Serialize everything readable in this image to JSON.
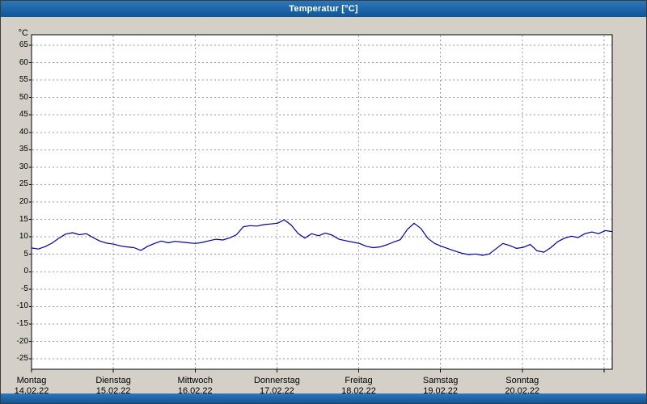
{
  "window": {
    "title": "Temperatur [°C]"
  },
  "colors": {
    "titlebar": "#1c64a5",
    "footer": "#1c64a5",
    "background": "#d4d0c8",
    "plot_background": "#ffffff",
    "grid": "#999999",
    "axis": "#000000",
    "line": "#000099",
    "title_text": "#ffffff"
  },
  "chart_data": {
    "type": "line",
    "title": "Temperatur [°C]",
    "ylabel": "°C",
    "ylim": [
      -25,
      65
    ],
    "y_tick_step": 5,
    "y_ticks": [
      65,
      60,
      55,
      50,
      45,
      40,
      35,
      30,
      25,
      20,
      15,
      10,
      5,
      0,
      -5,
      -10,
      -15,
      -20,
      -25
    ],
    "grid": "dashed",
    "legend": "none",
    "x_axis": {
      "days": [
        {
          "name": "Montag",
          "date": "14.02.22"
        },
        {
          "name": "Dienstag",
          "date": "15.02.22"
        },
        {
          "name": "Mittwoch",
          "date": "16.02.22"
        },
        {
          "name": "Donnerstag",
          "date": "17.02.22"
        },
        {
          "name": "Freitag",
          "date": "18.02.22"
        },
        {
          "name": "Samstag",
          "date": "19.02.22"
        },
        {
          "name": "Sonntag",
          "date": "20.02.22"
        }
      ]
    },
    "series": [
      {
        "name": "Temperatur",
        "unit": "°C",
        "sample_interval_hours": 2,
        "values": [
          6.8,
          6.5,
          7.2,
          8.2,
          9.6,
          10.8,
          11.2,
          10.6,
          10.9,
          9.8,
          8.8,
          8.2,
          7.9,
          7.4,
          7.1,
          6.9,
          6.1,
          7.3,
          8.1,
          8.8,
          8.3,
          8.7,
          8.5,
          8.3,
          8.1,
          8.4,
          8.9,
          9.3,
          9.1,
          9.7,
          10.6,
          12.9,
          13.2,
          13.1,
          13.5,
          13.7,
          13.9,
          14.9,
          13.4,
          11.0,
          9.6,
          10.9,
          10.3,
          11.1,
          10.5,
          9.3,
          8.9,
          8.5,
          8.1,
          7.3,
          6.9,
          7.1,
          7.7,
          8.5,
          9.2,
          12.1,
          13.9,
          12.4,
          9.6,
          8.1,
          7.3,
          6.6,
          5.9,
          5.3,
          4.9,
          5.1,
          4.7,
          5.1,
          6.6,
          8.1,
          7.5,
          6.7,
          7.0,
          7.8,
          6.0,
          5.6,
          6.9,
          8.6,
          9.6,
          10.2,
          9.8,
          10.9,
          11.4,
          10.9,
          11.8,
          11.5
        ]
      }
    ]
  }
}
